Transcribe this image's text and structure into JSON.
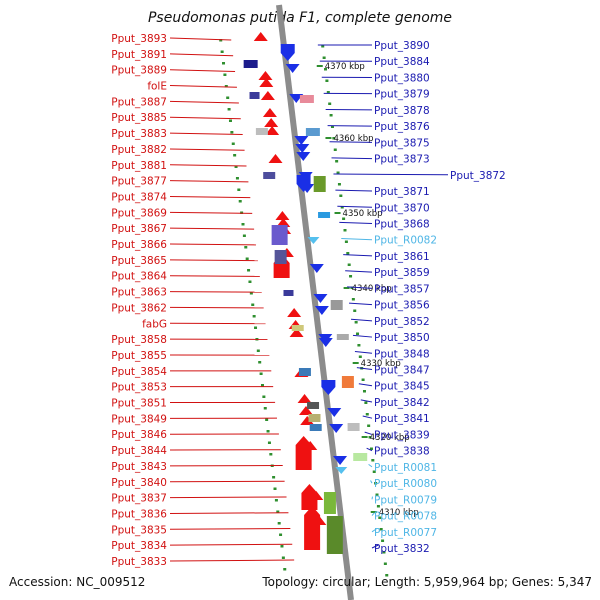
{
  "title": "Pseudomonas putida F1, complete genome",
  "footer": {
    "accession": "Accession: NC_009512",
    "summary": "Topology: circular; Length: 5,959,964 bp; Genes: 5,347"
  },
  "colors": {
    "axis": "#8c8c8c",
    "left_label": "#d11111",
    "right_label": "#1a1ab0",
    "rna_label": "#4fb6e6",
    "forward_feature": "#ef1111",
    "reverse_feature": "#1a2fe6",
    "rna_feature": "#55c0ee",
    "dot": "#2f8f2f"
  },
  "scale_labels": [
    "4370 kbp",
    "4360 kbp",
    "4350 kbp",
    "4340 kbp",
    "4330 kbp",
    "4320 kbp",
    "4310 kbp"
  ],
  "left_labels": [
    "Pput_3893",
    "Pput_3891",
    "Pput_3889",
    "folE",
    "Pput_3887",
    "Pput_3885",
    "Pput_3883",
    "Pput_3882",
    "Pput_3881",
    "Pput_3877",
    "Pput_3874",
    "Pput_3869",
    "Pput_3867",
    "Pput_3866",
    "Pput_3865",
    "Pput_3864",
    "Pput_3863",
    "Pput_3862",
    "fabG",
    "Pput_3858",
    "Pput_3855",
    "Pput_3854",
    "Pput_3853",
    "Pput_3851",
    "Pput_3849",
    "Pput_3846",
    "Pput_3844",
    "Pput_3843",
    "Pput_3840",
    "Pput_3837",
    "Pput_3836",
    "Pput_3835",
    "Pput_3834",
    "Pput_3833"
  ],
  "right_labels": [
    {
      "text": "Pput_3890",
      "rna": false
    },
    {
      "text": "Pput_3884",
      "rna": false
    },
    {
      "text": "Pput_3880",
      "rna": false
    },
    {
      "text": "Pput_3879",
      "rna": false
    },
    {
      "text": "Pput_3878",
      "rna": false
    },
    {
      "text": "Pput_3876",
      "rna": false
    },
    {
      "text": "Pput_3875",
      "rna": false
    },
    {
      "text": "Pput_3873",
      "rna": false
    },
    {
      "text": "Pput_3872",
      "rna": false
    },
    {
      "text": "Pput_3871",
      "rna": false
    },
    {
      "text": "Pput_3870",
      "rna": false
    },
    {
      "text": "Pput_3868",
      "rna": false
    },
    {
      "text": "Pput_R0082",
      "rna": true
    },
    {
      "text": "Pput_3861",
      "rna": false
    },
    {
      "text": "Pput_3859",
      "rna": false
    },
    {
      "text": "Pput_3857",
      "rna": false
    },
    {
      "text": "Pput_3856",
      "rna": false
    },
    {
      "text": "Pput_3852",
      "rna": false
    },
    {
      "text": "Pput_3850",
      "rna": false
    },
    {
      "text": "Pput_3848",
      "rna": false
    },
    {
      "text": "Pput_3847",
      "rna": false
    },
    {
      "text": "Pput_3845",
      "rna": false
    },
    {
      "text": "Pput_3842",
      "rna": false
    },
    {
      "text": "Pput_3841",
      "rna": false
    },
    {
      "text": "Pput_3839",
      "rna": false
    },
    {
      "text": "Pput_3838",
      "rna": false
    },
    {
      "text": "Pput_R0081",
      "rna": true
    },
    {
      "text": "Pput_R0080",
      "rna": true
    },
    {
      "text": "Pput_R0079",
      "rna": true
    },
    {
      "text": "Pput_R0078",
      "rna": true
    },
    {
      "text": "Pput_R0077",
      "rna": true
    },
    {
      "text": "Pput_3832",
      "rna": false
    }
  ]
}
